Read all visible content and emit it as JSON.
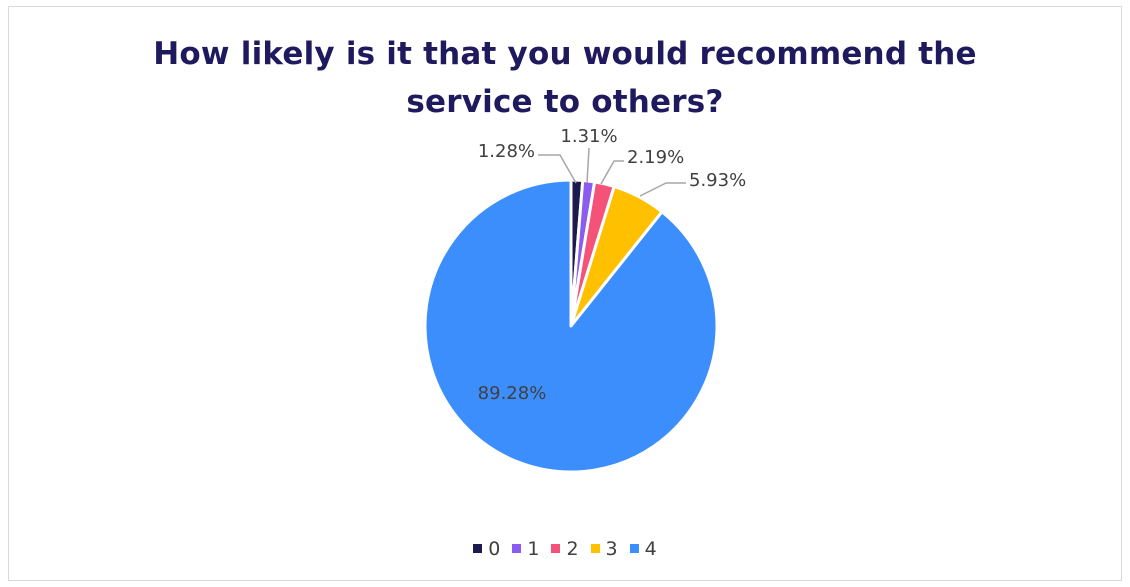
{
  "chart_data": {
    "type": "pie",
    "title_lines": [
      "How likely is it that you would recommend the",
      "service to others?"
    ],
    "categories": [
      "0",
      "1",
      "2",
      "3",
      "4"
    ],
    "values": [
      1.28,
      1.31,
      2.19,
      5.93,
      89.28
    ],
    "data_labels": [
      "1.28%",
      "1.31%",
      "2.19%",
      "5.93%",
      "89.28%"
    ],
    "colors": [
      "#1c1a4f",
      "#8a5cf0",
      "#f5527a",
      "#ffc000",
      "#3d8efd"
    ],
    "legend_position": "bottom",
    "start_angle": "top, clockwise"
  }
}
